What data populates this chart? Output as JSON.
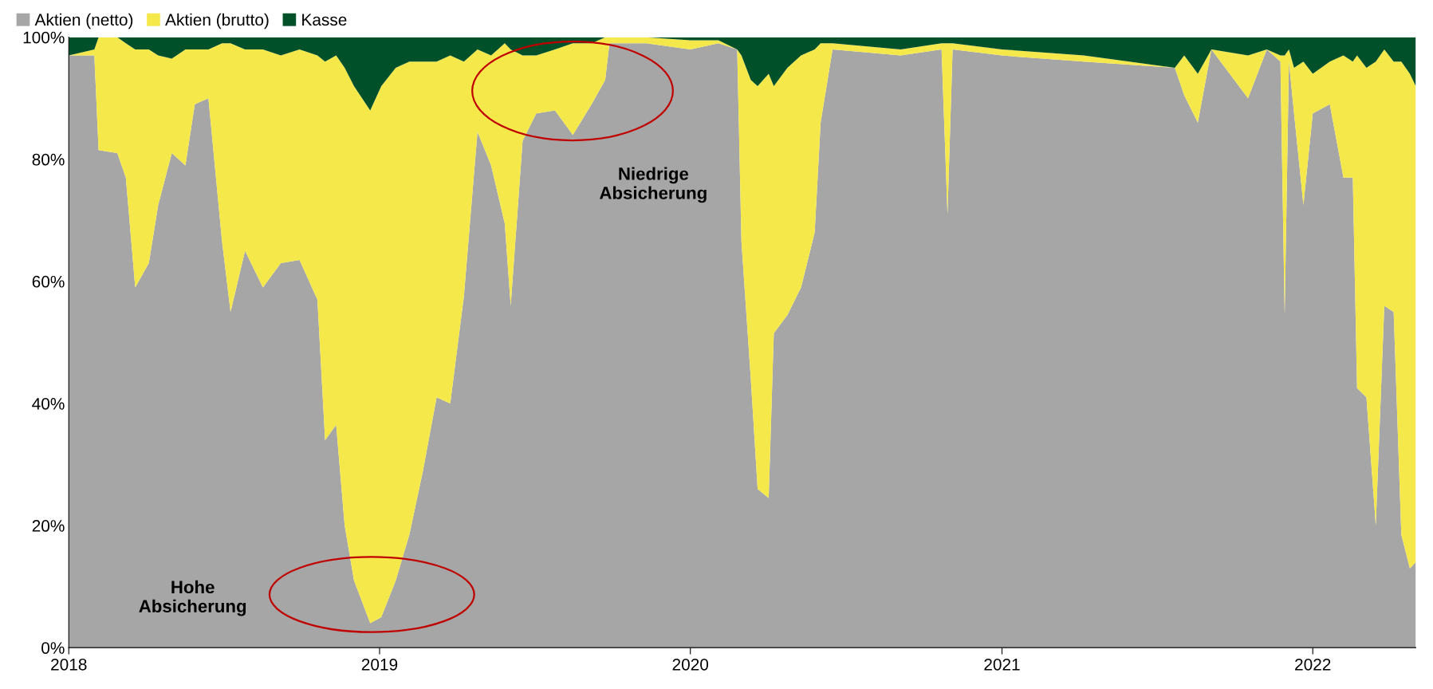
{
  "chart_data": {
    "type": "area",
    "stacked": true,
    "legend": "top left",
    "grid": false,
    "x": [
      "2018-01-01",
      "2018-01-31",
      "2018-02-05",
      "2018-02-27",
      "2018-03-09",
      "2018-03-20",
      "2018-04-05",
      "2018-04-16",
      "2018-05-02",
      "2018-05-18",
      "2018-05-29",
      "2018-06-14",
      "2018-06-30",
      "2018-07-10",
      "2018-07-27",
      "2018-08-17",
      "2018-09-07",
      "2018-09-29",
      "2018-10-20",
      "2018-10-29",
      "2018-11-11",
      "2018-11-21",
      "2018-12-02",
      "2018-12-21",
      "2019-01-03",
      "2019-01-20",
      "2019-02-05",
      "2019-02-21",
      "2019-03-09",
      "2019-03-25",
      "2019-04-10",
      "2019-04-26",
      "2019-05-12",
      "2019-05-28",
      "2019-06-04",
      "2019-06-18",
      "2019-07-04",
      "2019-07-26",
      "2019-08-16",
      "2019-09-07",
      "2019-09-23",
      "2019-09-28",
      "2019-11-10",
      "2020-01-01",
      "2020-02-03",
      "2020-02-25",
      "2020-03-01",
      "2020-03-12",
      "2020-03-20",
      "2020-04-02",
      "2020-04-08",
      "2020-04-24",
      "2020-05-10",
      "2020-05-26",
      "2020-06-02",
      "2020-06-16",
      "2020-09-04",
      "2020-10-22",
      "2020-10-29",
      "2020-11-04",
      "2021-01-01",
      "2021-04-07",
      "2021-07-23",
      "2021-08-03",
      "2021-08-19",
      "2021-09-04",
      "2021-10-17",
      "2021-11-08",
      "2021-11-24",
      "2021-11-29",
      "2021-12-04",
      "2021-12-10",
      "2021-12-21",
      "2022-01-01",
      "2022-01-21",
      "2022-02-06",
      "2022-02-17",
      "2022-02-22",
      "2022-03-05",
      "2022-03-16",
      "2022-03-26",
      "2022-04-06",
      "2022-04-15",
      "2022-04-25",
      "2022-05-02"
    ],
    "series": [
      {
        "name": "Aktien (netto)",
        "color": "#a6a6a6",
        "values": [
          97,
          97,
          81.5,
          81,
          77,
          59,
          63,
          72.5,
          81,
          79,
          89,
          90,
          66.5,
          55,
          65,
          59,
          63,
          63.5,
          57,
          34,
          36.5,
          20,
          11,
          4,
          5,
          11,
          18.5,
          29,
          41,
          40,
          57.5,
          84.5,
          79,
          69.5,
          56,
          83,
          87.5,
          88,
          84,
          89,
          93,
          99,
          99,
          98,
          99,
          98,
          66.5,
          44,
          26,
          24.5,
          51.5,
          54.5,
          59,
          68,
          86,
          98,
          97,
          98,
          71,
          98,
          97,
          96,
          95,
          90.5,
          86,
          98,
          90,
          98,
          96,
          54.5,
          96,
          87.5,
          72.5,
          87.5,
          89,
          77,
          77,
          42.5,
          41,
          20,
          56,
          55,
          18.5,
          13,
          14
        ]
      },
      {
        "name": "Aktien (brutto)",
        "color": "#f5e84a",
        "values": [
          0,
          1,
          18.5,
          19,
          22,
          39,
          35,
          24.5,
          15.5,
          19,
          9,
          8,
          32.5,
          44,
          33,
          39,
          34,
          34.5,
          40,
          62,
          60.5,
          75,
          81,
          84,
          87,
          84,
          77.5,
          67,
          55,
          57,
          38.5,
          13.5,
          18,
          29.5,
          42,
          14,
          9.5,
          10,
          15,
          10,
          7,
          1,
          1,
          1.5,
          0.5,
          0,
          30.5,
          49,
          66,
          69.5,
          40.5,
          40.5,
          38,
          30,
          13,
          1,
          1,
          1,
          28,
          1,
          1,
          1,
          0,
          6.5,
          8,
          0,
          7,
          0,
          1,
          42.5,
          2,
          7.5,
          23.5,
          6.5,
          7,
          20,
          19,
          54.5,
          54,
          76,
          42,
          41,
          77.5,
          81,
          78
        ]
      },
      {
        "name": "Kasse",
        "color": "#00502a",
        "values": [
          3,
          2,
          0,
          0,
          1,
          2,
          2,
          3,
          3.5,
          2,
          2,
          2,
          1,
          1,
          2,
          2,
          3,
          2,
          3,
          4,
          3,
          5,
          8,
          12,
          8,
          5,
          4,
          4,
          4,
          3,
          4,
          2,
          3,
          1,
          2,
          3,
          3,
          2,
          1,
          1,
          0,
          0,
          0,
          0.5,
          0.5,
          2,
          3,
          7,
          8,
          6,
          8,
          5,
          3,
          2,
          1,
          1,
          2,
          1,
          1,
          1,
          2,
          3,
          5,
          3,
          6,
          2,
          3,
          2,
          3,
          3,
          2,
          5,
          4,
          6,
          4,
          3,
          4,
          3,
          5,
          4,
          2,
          4,
          4,
          6,
          8
        ]
      }
    ],
    "xlim": [
      "2018-01-01",
      "2022-05-02"
    ],
    "xticks": [
      {
        "value": "2018-01-01",
        "label": "2018"
      },
      {
        "value": "2019-01-01",
        "label": "2019"
      },
      {
        "value": "2020-01-01",
        "label": "2020"
      },
      {
        "value": "2021-01-01",
        "label": "2021"
      },
      {
        "value": "2022-01-01",
        "label": "2022"
      }
    ],
    "ylim": [
      0,
      100
    ],
    "yticks": [
      {
        "value": 0,
        "label": "0%"
      },
      {
        "value": 20,
        "label": "20%"
      },
      {
        "value": 40,
        "label": "40%"
      },
      {
        "value": 60,
        "label": "60%"
      },
      {
        "value": 80,
        "label": "80%"
      },
      {
        "value": 100,
        "label": "100%"
      }
    ],
    "annotations": [
      "Hohe Absicherung",
      "Niedrige Absicherung"
    ]
  }
}
